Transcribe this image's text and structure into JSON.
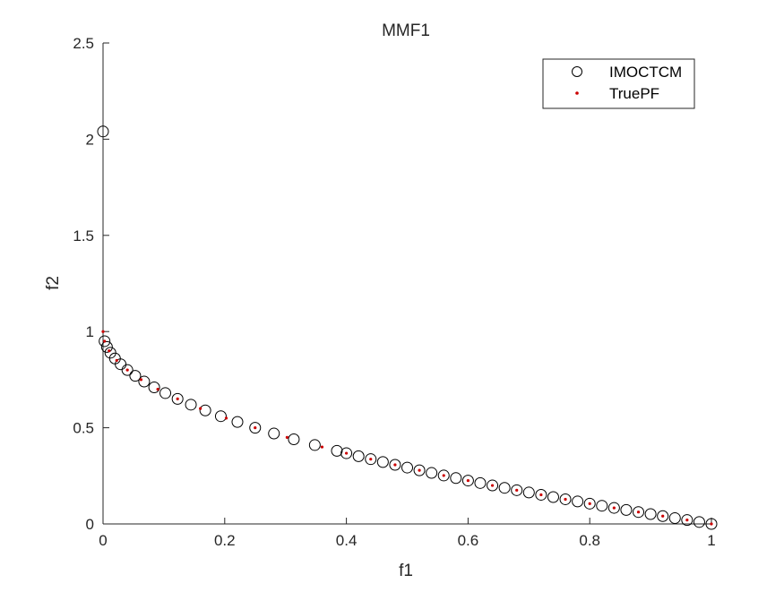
{
  "chart_data": {
    "type": "scatter",
    "title": "MMF1",
    "xlabel": "f1",
    "ylabel": "f2",
    "xlim": [
      0,
      1
    ],
    "ylim": [
      0,
      2.5
    ],
    "xticks": [
      0,
      0.2,
      0.4,
      0.6,
      0.8,
      1
    ],
    "xtick_labels": [
      "0",
      "0.2",
      "0.4",
      "0.6",
      "0.8",
      "1"
    ],
    "yticks": [
      0,
      0.5,
      1,
      1.5,
      2,
      2.5
    ],
    "ytick_labels": [
      "0",
      "0.5",
      "1",
      "1.5",
      "2",
      "2.5"
    ],
    "grid": false,
    "legend_position": "top-right",
    "series": [
      {
        "name": "IMOCTCM",
        "marker": "open-circle",
        "color": "#000000",
        "points": [
          [
            0.0,
            2.04
          ],
          [
            0.0025,
            0.95
          ],
          [
            0.0064,
            0.92
          ],
          [
            0.0121,
            0.89
          ],
          [
            0.0196,
            0.86
          ],
          [
            0.0289,
            0.83
          ],
          [
            0.04,
            0.8
          ],
          [
            0.0529,
            0.77
          ],
          [
            0.0676,
            0.74
          ],
          [
            0.0841,
            0.71
          ],
          [
            0.1024,
            0.68
          ],
          [
            0.1225,
            0.65
          ],
          [
            0.1444,
            0.62
          ],
          [
            0.1681,
            0.59
          ],
          [
            0.1936,
            0.56
          ],
          [
            0.2209,
            0.53
          ],
          [
            0.25,
            0.5
          ],
          [
            0.2809,
            0.47
          ],
          [
            0.3136,
            0.44
          ],
          [
            0.3481,
            0.41
          ],
          [
            0.3844,
            0.38
          ],
          [
            0.4,
            0.3675
          ],
          [
            0.42,
            0.352
          ],
          [
            0.44,
            0.3367
          ],
          [
            0.46,
            0.3218
          ],
          [
            0.48,
            0.3072
          ],
          [
            0.5,
            0.2929
          ],
          [
            0.52,
            0.2789
          ],
          [
            0.54,
            0.2652
          ],
          [
            0.56,
            0.2517
          ],
          [
            0.58,
            0.2384
          ],
          [
            0.6,
            0.2254
          ],
          [
            0.62,
            0.2126
          ],
          [
            0.64,
            0.2
          ],
          [
            0.66,
            0.1876
          ],
          [
            0.68,
            0.1754
          ],
          [
            0.7,
            0.1633
          ],
          [
            0.72,
            0.1515
          ],
          [
            0.74,
            0.1398
          ],
          [
            0.76,
            0.1282
          ],
          [
            0.78,
            0.1168
          ],
          [
            0.8,
            0.1056
          ],
          [
            0.82,
            0.0945
          ],
          [
            0.84,
            0.0835
          ],
          [
            0.86,
            0.0726
          ],
          [
            0.88,
            0.0619
          ],
          [
            0.9,
            0.0513
          ],
          [
            0.92,
            0.0408
          ],
          [
            0.94,
            0.0305
          ],
          [
            0.96,
            0.0202
          ],
          [
            0.98,
            0.0101
          ],
          [
            1.0,
            0.0
          ]
        ]
      },
      {
        "name": "TruePF",
        "marker": "dot",
        "color": "#cc0000",
        "function": "1 - sqrt(f1)",
        "points": [
          [
            0.0,
            1.0
          ],
          [
            0.0025,
            0.95
          ],
          [
            0.01,
            0.9
          ],
          [
            0.0225,
            0.85
          ],
          [
            0.04,
            0.8
          ],
          [
            0.0625,
            0.75
          ],
          [
            0.09,
            0.7
          ],
          [
            0.1225,
            0.65
          ],
          [
            0.16,
            0.6
          ],
          [
            0.2025,
            0.55
          ],
          [
            0.25,
            0.5
          ],
          [
            0.3025,
            0.45
          ],
          [
            0.36,
            0.4
          ],
          [
            0.4,
            0.3675
          ],
          [
            0.44,
            0.3367
          ],
          [
            0.48,
            0.3072
          ],
          [
            0.52,
            0.2789
          ],
          [
            0.56,
            0.2517
          ],
          [
            0.6,
            0.2254
          ],
          [
            0.64,
            0.2
          ],
          [
            0.68,
            0.1754
          ],
          [
            0.72,
            0.1515
          ],
          [
            0.76,
            0.1282
          ],
          [
            0.8,
            0.1056
          ],
          [
            0.84,
            0.0835
          ],
          [
            0.88,
            0.0619
          ],
          [
            0.92,
            0.0408
          ],
          [
            0.96,
            0.0202
          ],
          [
            1.0,
            0.0
          ]
        ]
      }
    ]
  },
  "colors": {
    "axis": "#262626",
    "circle": "#000000",
    "dot": "#cc0000"
  }
}
